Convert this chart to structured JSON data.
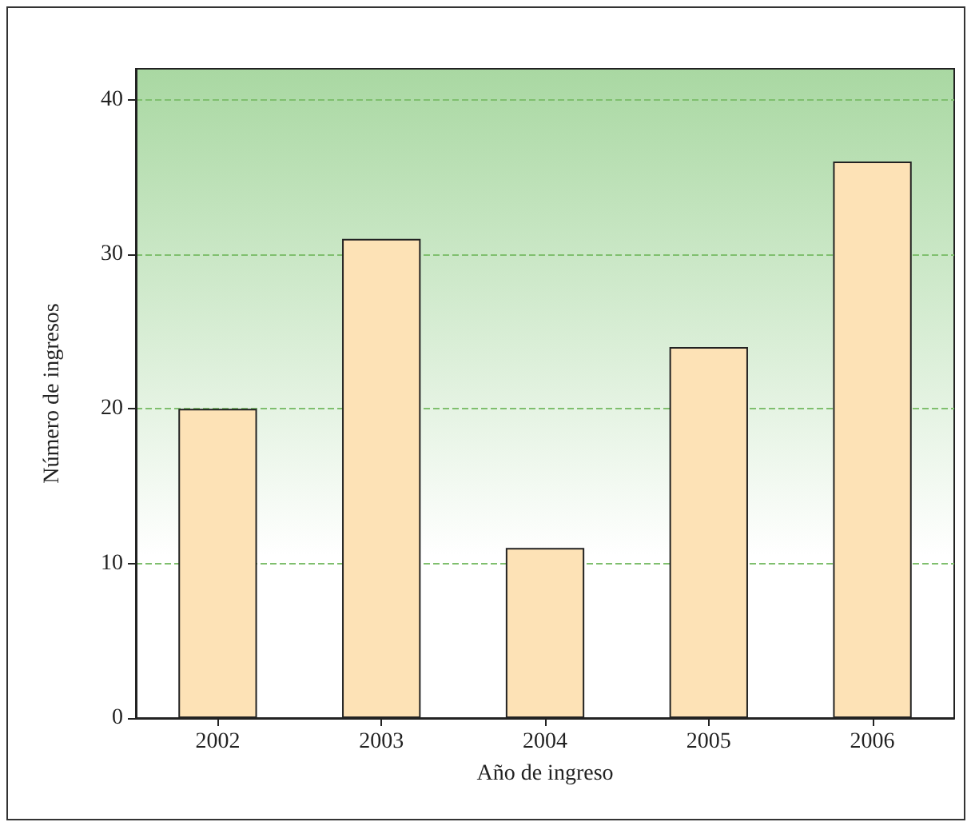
{
  "chart_data": {
    "type": "bar",
    "xlabel": "Año de ingreso",
    "ylabel": "Número de ingresos",
    "categories": [
      "2002",
      "2003",
      "2004",
      "2005",
      "2006"
    ],
    "values": [
      20,
      31,
      11,
      24,
      36
    ],
    "color": "#fde2b6",
    "ylim": [
      0,
      42
    ],
    "yticks": [
      0,
      10,
      20,
      30,
      40
    ],
    "grid": "y"
  }
}
